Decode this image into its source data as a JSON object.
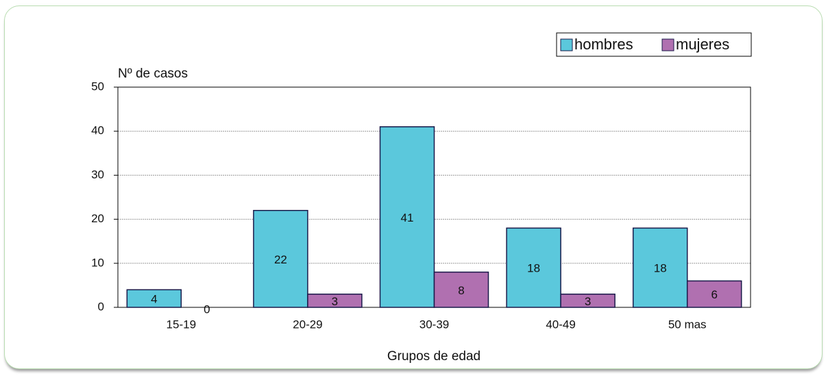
{
  "chart_data": {
    "type": "bar",
    "y_label": "Nº de casos",
    "x_label": "Grupos de edad",
    "categories": [
      "15-19",
      "20-29",
      "30-39",
      "40-49",
      "50 mas"
    ],
    "series": [
      {
        "name": "hombres",
        "color": "#5bc8dc",
        "values": [
          4,
          22,
          41,
          18,
          18
        ]
      },
      {
        "name": "mujeres",
        "color": "#b070b0",
        "values": [
          0,
          3,
          8,
          3,
          6
        ]
      }
    ],
    "ylim": [
      0,
      50
    ],
    "yticks": [
      0,
      10,
      20,
      30,
      40,
      50
    ],
    "grid": true,
    "legend": "top-right"
  }
}
